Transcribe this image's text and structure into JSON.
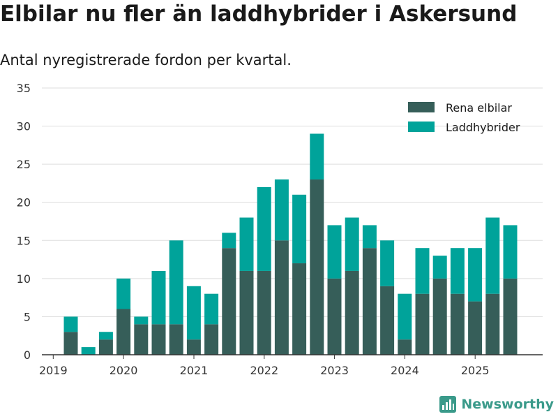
{
  "header": {
    "title": "Elbilar nu fler än laddhybrider i Askersund",
    "subtitle": "Antal nyregistrerade fordon per kvartal."
  },
  "brand": {
    "name": "Newsworthy",
    "icon": "bar-chart-logo-icon"
  },
  "colors": {
    "rena": "#365e59",
    "ladd": "#00a39a",
    "grid": "#dddddd",
    "axis": "#333333",
    "brand": "#3a9a8a"
  },
  "chart_data": {
    "type": "bar",
    "stacked": true,
    "title": "Elbilar nu fler än laddhybrider i Askersund",
    "subtitle": "Antal nyregistrerade fordon per kvartal.",
    "xlabel": "",
    "ylabel": "",
    "ylim": [
      0,
      35
    ],
    "yticks": [
      0,
      5,
      10,
      15,
      20,
      25,
      30,
      35
    ],
    "grid": true,
    "legend_position": "top-right",
    "categories": [
      "2019 Q2",
      "2019 Q3",
      "2019 Q4",
      "2020 Q1",
      "2020 Q2",
      "2020 Q3",
      "2020 Q4",
      "2021 Q1",
      "2021 Q2",
      "2021 Q3",
      "2021 Q4",
      "2022 Q1",
      "2022 Q2",
      "2022 Q3",
      "2022 Q4",
      "2023 Q1",
      "2023 Q2",
      "2023 Q3",
      "2023 Q4",
      "2024 Q1",
      "2024 Q2",
      "2024 Q3",
      "2024 Q4",
      "2025 Q1",
      "2025 Q2",
      "2025 Q3"
    ],
    "series": [
      {
        "name": "Rena elbilar",
        "values": [
          3,
          0,
          2,
          6,
          4,
          4,
          4,
          2,
          4,
          14,
          11,
          11,
          15,
          12,
          23,
          10,
          11,
          14,
          9,
          2,
          8,
          10,
          8,
          7,
          8,
          10
        ]
      },
      {
        "name": "Laddhybrider",
        "values": [
          2,
          1,
          1,
          4,
          1,
          7,
          11,
          7,
          4,
          2,
          7,
          11,
          8,
          9,
          6,
          7,
          7,
          3,
          6,
          6,
          6,
          3,
          6,
          7,
          10,
          7
        ]
      }
    ],
    "x_tick_labels": [
      "2019",
      "2020",
      "2021",
      "2022",
      "2023",
      "2024",
      "2025"
    ]
  }
}
